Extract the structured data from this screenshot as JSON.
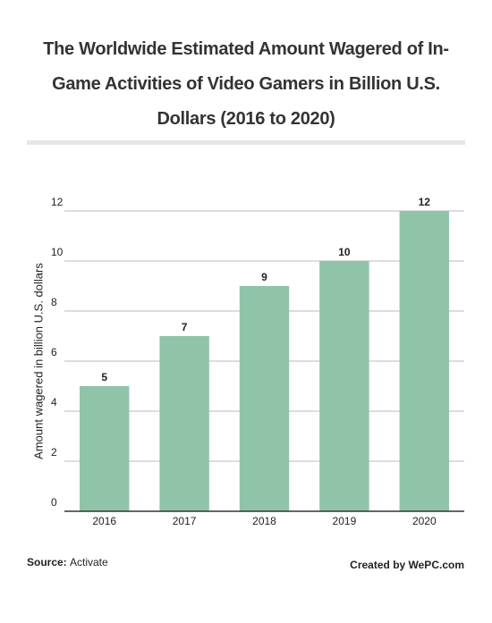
{
  "chart_data": {
    "type": "bar",
    "title": "The Worldwide Estimated Amount Wagered of In-Game Activities of Video Gamers in Billion U.S. Dollars (2016 to 2020)",
    "y_label": "Amount wagered in billion U.S. dollars",
    "categories": [
      "2016",
      "2017",
      "2018",
      "2019",
      "2020"
    ],
    "values": [
      5,
      7,
      9,
      10,
      12
    ],
    "color": "#8fc4a8",
    "ylim": [
      0,
      12
    ],
    "yticks": [
      0,
      2,
      4,
      6,
      8,
      10,
      12
    ],
    "grid": true,
    "source_label": "Source:",
    "source": "Activate",
    "credit": "Created by WePC.com"
  }
}
